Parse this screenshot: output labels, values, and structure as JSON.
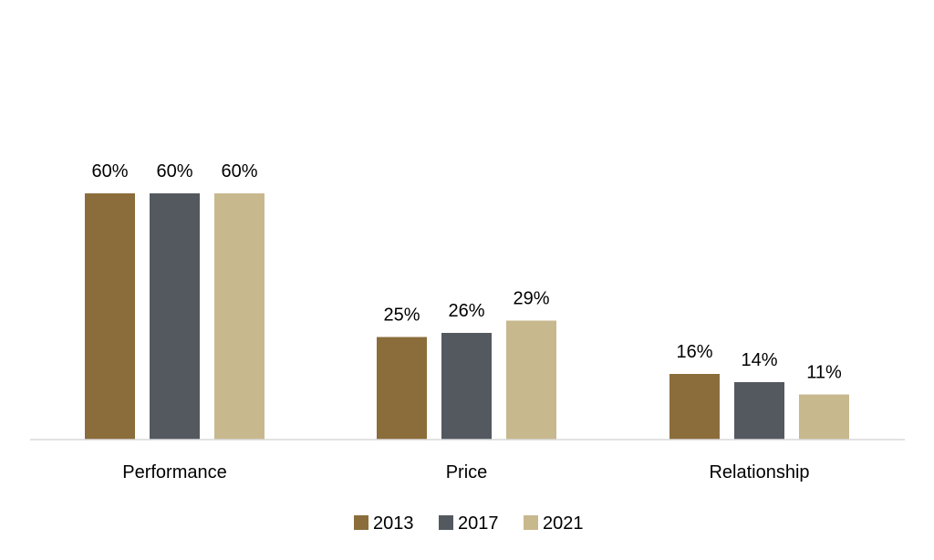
{
  "chart_data": {
    "type": "bar",
    "categories": [
      "Performance",
      "Price",
      "Relationship"
    ],
    "series": [
      {
        "name": "2013",
        "values": [
          60,
          25,
          16
        ],
        "labels": [
          "60%",
          "25%",
          "16%"
        ],
        "color": "#8B6D3B"
      },
      {
        "name": "2017",
        "values": [
          60,
          26,
          14
        ],
        "labels": [
          "60%",
          "26%",
          "14%"
        ],
        "color": "#545960"
      },
      {
        "name": "2021",
        "values": [
          60,
          29,
          11
        ],
        "labels": [
          "60%",
          "29%",
          "11%"
        ],
        "color": "#C8B88E"
      }
    ],
    "ylim": [
      0,
      60
    ],
    "grid": false,
    "legend": "bottom-center",
    "axis_color": "#D9D9D9"
  }
}
